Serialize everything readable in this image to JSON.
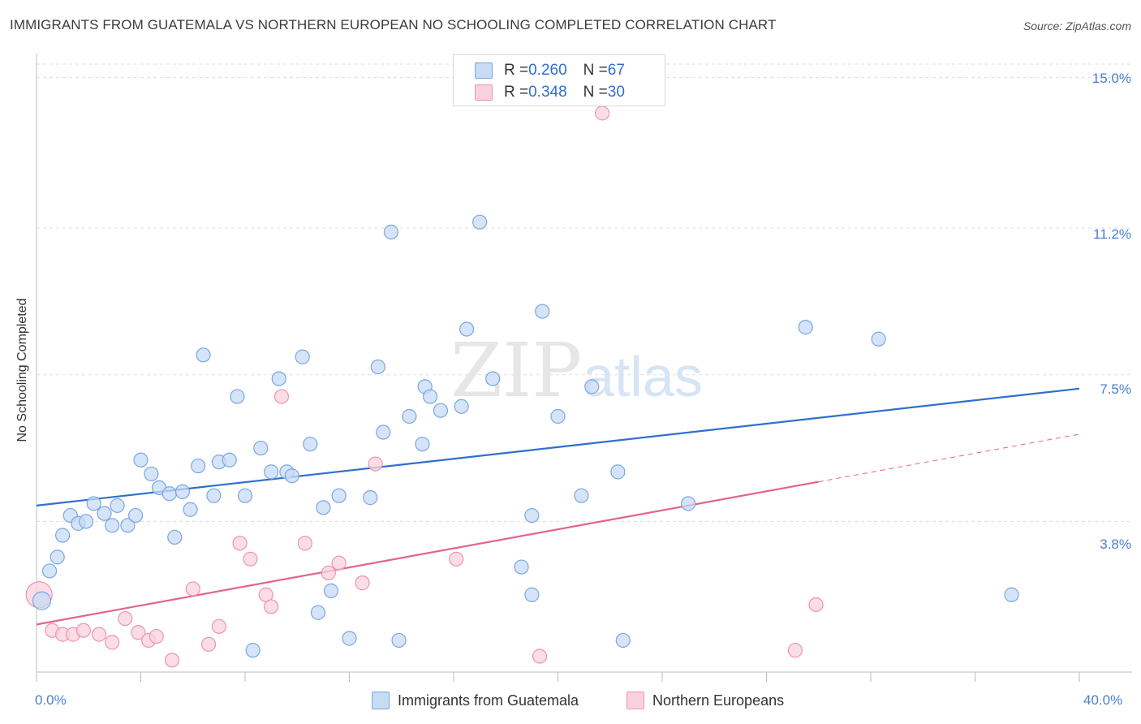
{
  "header": {
    "title": "IMMIGRANTS FROM GUATEMALA VS NORTHERN EUROPEAN NO SCHOOLING COMPLETED CORRELATION CHART",
    "source": "Source: ZipAtlas.com"
  },
  "watermark": {
    "part1": "ZIP",
    "part2": "atlas"
  },
  "legend_top": {
    "rows": [
      {
        "r_label": "R = ",
        "r_value": "0.260",
        "n_label": "N = ",
        "n_value": "67",
        "color": "#aac8f0"
      },
      {
        "r_label": "R = ",
        "r_value": "0.348",
        "n_label": "N = ",
        "n_value": "30",
        "color": "#f7bfd0"
      }
    ]
  },
  "colors": {
    "blue_fill": "#c7dbf5",
    "blue_stroke": "#7aa7e0",
    "blue_line": "#2f6fcf",
    "pink_fill": "#f9d1de",
    "pink_stroke": "#ec94b3",
    "pink_line": "#e2648f",
    "tick_text": "#4a7fd0",
    "grid": "#dddddd"
  },
  "chart_data": {
    "type": "scatter",
    "title": "IMMIGRANTS FROM GUATEMALA VS NORTHERN EUROPEAN NO SCHOOLING COMPLETED CORRELATION CHART",
    "xlabel": "",
    "ylabel": "No Schooling Completed",
    "xlim": [
      0,
      40
    ],
    "ylim": [
      0,
      15.5
    ],
    "x_tick_labels": [
      "0.0%",
      "40.0%"
    ],
    "y_tick_labels": [
      "15.0%",
      "11.2%",
      "7.5%",
      "3.8%"
    ],
    "y_ticks": [
      15.0,
      11.2,
      7.5,
      3.8
    ],
    "grid": true,
    "legend_position": "bottom",
    "series": [
      {
        "name": "Immigrants from Guatemala",
        "color": "#7aa7e0",
        "points": [
          [
            0.2,
            1.8,
            "L"
          ],
          [
            0.5,
            2.55
          ],
          [
            0.8,
            2.9
          ],
          [
            1.0,
            3.45
          ],
          [
            1.3,
            3.95
          ],
          [
            1.6,
            3.75
          ],
          [
            1.9,
            3.8
          ],
          [
            2.2,
            4.25
          ],
          [
            2.6,
            4.0
          ],
          [
            2.9,
            3.7
          ],
          [
            3.1,
            4.2
          ],
          [
            3.5,
            3.7
          ],
          [
            3.8,
            3.95
          ],
          [
            4.0,
            5.35
          ],
          [
            4.4,
            5.0
          ],
          [
            4.7,
            4.65
          ],
          [
            5.1,
            4.5
          ],
          [
            5.3,
            3.4
          ],
          [
            5.6,
            4.55
          ],
          [
            5.9,
            4.1
          ],
          [
            6.2,
            5.2
          ],
          [
            6.4,
            8.0
          ],
          [
            6.8,
            4.45
          ],
          [
            7.0,
            5.3
          ],
          [
            7.4,
            5.35
          ],
          [
            7.7,
            6.95
          ],
          [
            8.0,
            4.45
          ],
          [
            8.3,
            0.55
          ],
          [
            8.6,
            5.65
          ],
          [
            9.0,
            5.05
          ],
          [
            9.3,
            7.4
          ],
          [
            9.6,
            5.05
          ],
          [
            9.8,
            4.95
          ],
          [
            10.2,
            7.95
          ],
          [
            10.5,
            5.75
          ],
          [
            10.8,
            1.5
          ],
          [
            11.0,
            4.15
          ],
          [
            11.3,
            2.05
          ],
          [
            11.6,
            4.45
          ],
          [
            12.0,
            0.85
          ],
          [
            12.8,
            4.4
          ],
          [
            13.1,
            7.7
          ],
          [
            13.3,
            6.05
          ],
          [
            13.6,
            11.1
          ],
          [
            13.9,
            0.8
          ],
          [
            14.3,
            6.45
          ],
          [
            14.8,
            5.75
          ],
          [
            14.9,
            7.2
          ],
          [
            15.1,
            6.95
          ],
          [
            15.5,
            6.6
          ],
          [
            16.3,
            6.7
          ],
          [
            16.5,
            8.65
          ],
          [
            17.0,
            11.35
          ],
          [
            17.5,
            7.4
          ],
          [
            18.6,
            2.65
          ],
          [
            19.0,
            1.95
          ],
          [
            19.0,
            3.95
          ],
          [
            19.4,
            9.1
          ],
          [
            20.0,
            6.45
          ],
          [
            20.9,
            4.45
          ],
          [
            21.3,
            7.2
          ],
          [
            22.3,
            5.05
          ],
          [
            22.5,
            0.8
          ],
          [
            25.0,
            4.25
          ],
          [
            29.5,
            8.7
          ],
          [
            32.3,
            8.4
          ],
          [
            37.4,
            1.95
          ]
        ]
      },
      {
        "name": "Northern Europeans",
        "color": "#ec94b3",
        "points": [
          [
            0.1,
            1.95,
            "L"
          ],
          [
            0.6,
            1.05
          ],
          [
            1.0,
            0.95
          ],
          [
            1.4,
            0.95
          ],
          [
            1.8,
            1.05
          ],
          [
            2.4,
            0.95
          ],
          [
            2.9,
            0.75
          ],
          [
            3.4,
            1.35
          ],
          [
            3.9,
            1.0
          ],
          [
            4.3,
            0.8
          ],
          [
            4.6,
            0.9
          ],
          [
            5.2,
            0.3
          ],
          [
            6.0,
            2.1
          ],
          [
            6.6,
            0.7
          ],
          [
            7.0,
            1.15
          ],
          [
            7.8,
            3.25
          ],
          [
            8.2,
            2.85
          ],
          [
            8.8,
            1.95
          ],
          [
            9.0,
            1.65
          ],
          [
            9.4,
            6.95
          ],
          [
            10.3,
            3.25
          ],
          [
            11.2,
            2.5
          ],
          [
            11.6,
            2.75
          ],
          [
            12.5,
            2.25
          ],
          [
            13.0,
            5.25
          ],
          [
            16.1,
            2.85
          ],
          [
            19.3,
            0.4
          ],
          [
            21.7,
            14.1
          ],
          [
            29.1,
            0.55
          ],
          [
            29.9,
            1.7
          ]
        ]
      }
    ],
    "trend_lines": [
      {
        "series": "Immigrants from Guatemala",
        "x": [
          0,
          40
        ],
        "y": [
          4.2,
          7.15
        ]
      },
      {
        "series": "Northern Europeans",
        "x": [
          0,
          30,
          40
        ],
        "y": [
          1.2,
          4.8,
          6.0
        ],
        "dashed_from": 30
      }
    ]
  },
  "legend_bottom": {
    "items": [
      {
        "label": "Immigrants from Guatemala",
        "color": "#aac8f0"
      },
      {
        "label": "Northern Europeans",
        "color": "#f7bfd0"
      }
    ]
  }
}
